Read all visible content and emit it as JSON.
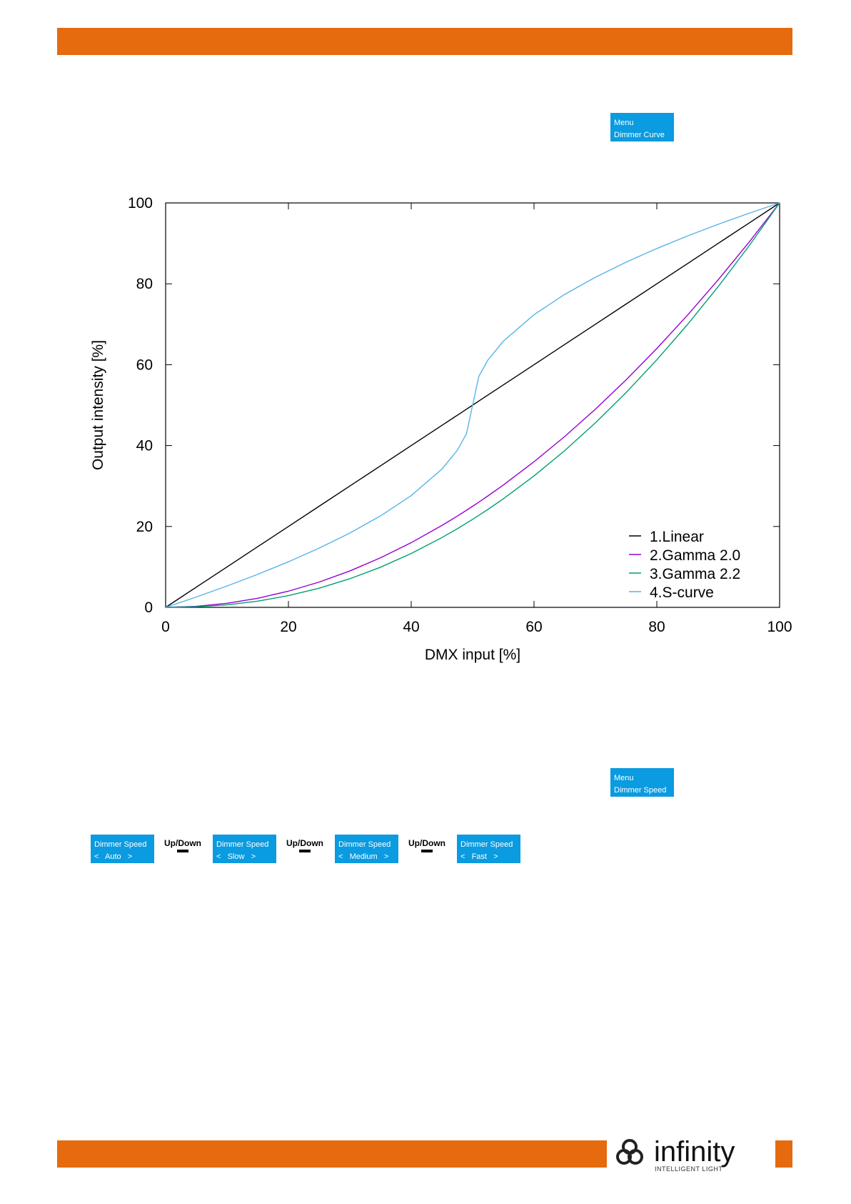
{
  "menu_1": {
    "line1": "Menu",
    "line2": "Dimmer Curve"
  },
  "chart_data": {
    "type": "line",
    "x": [
      0,
      5,
      10,
      15,
      20,
      25,
      30,
      35,
      40,
      45,
      47.5,
      49,
      50,
      51,
      52.5,
      55,
      60,
      65,
      70,
      75,
      80,
      85,
      90,
      95,
      100
    ],
    "series": [
      {
        "name": "1.Linear",
        "color": "#000000",
        "values": [
          0,
          5,
          10,
          15,
          20,
          25,
          30,
          35,
          40,
          45,
          47.5,
          49,
          50,
          51,
          52.5,
          55,
          60,
          65,
          70,
          75,
          80,
          85,
          90,
          95,
          100
        ]
      },
      {
        "name": "2.Gamma 2.0",
        "color": "#9400d3",
        "values": [
          0,
          0.25,
          1,
          2.25,
          4,
          6.25,
          9,
          12.25,
          16,
          20.25,
          22.56,
          24.01,
          25,
          26.01,
          27.56,
          30.25,
          36,
          42.25,
          49,
          56.25,
          64,
          72.25,
          81,
          90.25,
          100
        ]
      },
      {
        "name": "3.Gamma 2.2",
        "color": "#009e73",
        "values": [
          0,
          0.14,
          0.63,
          1.54,
          2.9,
          4.74,
          7.07,
          9.93,
          13.32,
          17.26,
          19.44,
          20.82,
          21.76,
          22.74,
          24.23,
          26.84,
          32.5,
          38.76,
          45.63,
          53.11,
          61.21,
          69.94,
          79.31,
          89.33,
          100
        ]
      },
      {
        "name": "4.S-curve",
        "color": "#56b4e9",
        "values": [
          0,
          2.56,
          5.28,
          8.17,
          11.27,
          14.64,
          18.38,
          22.61,
          27.64,
          34.19,
          38.82,
          42.93,
          50,
          57.07,
          61.18,
          65.81,
          72.36,
          77.39,
          81.62,
          85.36,
          88.73,
          91.83,
          94.72,
          97.44,
          100
        ]
      }
    ],
    "xlabel": "DMX input [%]",
    "ylabel": "Output intensity [%]",
    "xlim": [
      0,
      100
    ],
    "ylim": [
      0,
      100
    ],
    "xticks": [
      0,
      20,
      40,
      60,
      80,
      100
    ],
    "yticks": [
      0,
      20,
      40,
      60,
      80,
      100
    ],
    "grid": false,
    "legend": "lower right"
  },
  "menu_2": {
    "line1": "Menu",
    "line2": "Dimmer Speed"
  },
  "sequence": [
    {
      "line1": "Dimmer Speed",
      "line2": "<   Auto   >"
    },
    {
      "line1": "Dimmer Speed",
      "line2": "<   Slow   >"
    },
    {
      "line1": "Dimmer Speed",
      "line2": "<   Medium   >"
    },
    {
      "line1": "Dimmer Speed",
      "line2": "<   Fast   >"
    }
  ],
  "step_label": "Up/Down",
  "logo": {
    "brand": "infinity",
    "tagline": "INTELLIGENT LIGHT"
  }
}
